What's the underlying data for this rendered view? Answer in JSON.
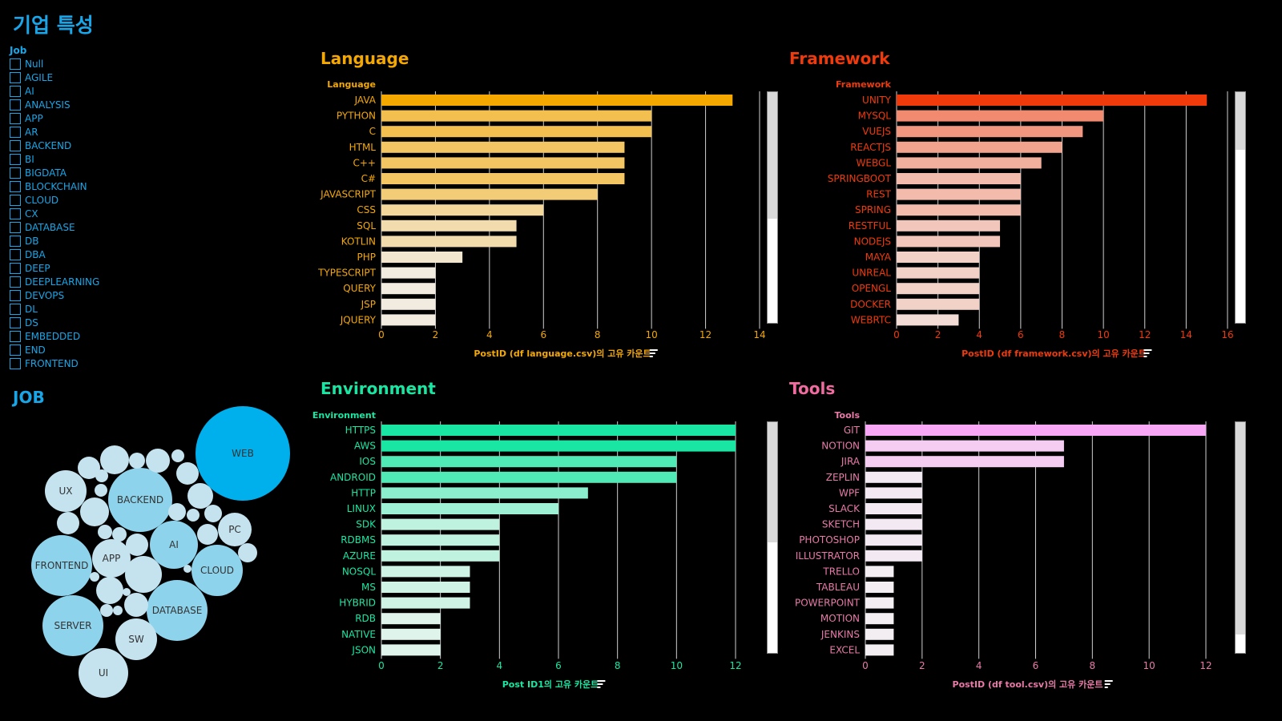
{
  "page_title": "기업 특성",
  "filter": {
    "title": "Job",
    "items": [
      "Null",
      "AGILE",
      "AI",
      "ANALYSIS",
      "APP",
      "AR",
      "BACKEND",
      "BI",
      "BIGDATA",
      "BLOCKCHAIN",
      "CLOUD",
      "CX",
      "DATABASE",
      "DB",
      "DBA",
      "DEEP",
      "DEEPLEARNING",
      "DEVOPS",
      "DL",
      "DS",
      "EMBEDDED",
      "END",
      "FRONTEND"
    ]
  },
  "job": {
    "title": "JOB",
    "labels": [
      "WEB",
      "UX",
      "BACKEND",
      "PC",
      "AI",
      "APP",
      "FRONTEND",
      "CLOUD",
      "DATABASE",
      "SERVER",
      "SW",
      "UI"
    ],
    "colors": {
      "primary": "#00b0ec",
      "mid": "#8ed3ec",
      "light": "#c4e3ef"
    }
  },
  "chart_data": [
    {
      "type": "bar",
      "title": "Language",
      "ylabel": "Language",
      "xlabel": "PostID (df language.csv)의 고유 카운트",
      "categories": [
        "JAVA",
        "PYTHON",
        "C",
        "HTML",
        "C++",
        "C#",
        "JAVASCRIPT",
        "CSS",
        "SQL",
        "KOTLIN",
        "PHP",
        "TYPESCRIPT",
        "QUERY",
        "JSP",
        "JQUERY"
      ],
      "values": [
        13,
        10,
        10,
        9,
        9,
        9,
        8,
        6,
        5,
        5,
        3,
        2,
        2,
        2,
        2
      ],
      "xlim": [
        0,
        14
      ],
      "ticks": [
        0,
        2,
        4,
        6,
        8,
        10,
        12,
        14
      ],
      "color": "#f4a800",
      "color_light": "#f2ebdf",
      "grid": true,
      "scroll_thumb": 0.55
    },
    {
      "type": "bar",
      "title": "Framework",
      "ylabel": "Framework",
      "xlabel": "PostID (df framework.csv)의 고유 카운트",
      "categories": [
        "UNITY",
        "MYSQL",
        "VUEJS",
        "REACTJS",
        "WEBGL",
        "SPRINGBOOT",
        "REST",
        "SPRING",
        "RESTFUL",
        "NODEJS",
        "MAYA",
        "UNREAL",
        "OPENGL",
        "DOCKER",
        "WEBRTC"
      ],
      "values": [
        15,
        10,
        9,
        8,
        7,
        6,
        6,
        6,
        5,
        5,
        4,
        4,
        4,
        4,
        3
      ],
      "xlim": [
        0,
        16
      ],
      "ticks": [
        0,
        2,
        4,
        6,
        8,
        10,
        12,
        14,
        16
      ],
      "color": "#f03a0b",
      "color_light": "#f2dcd5",
      "grid": true,
      "scroll_thumb": 0.25
    },
    {
      "type": "bar",
      "title": "Environment",
      "ylabel": "Environment",
      "xlabel": "Post ID1의 고유 카운트",
      "categories": [
        "HTTPS",
        "AWS",
        "IOS",
        "ANDROID",
        "HTTP",
        "LINUX",
        "SDK",
        "RDBMS",
        "AZURE",
        "NOSQL",
        "MS",
        "HYBRID",
        "RDB",
        "NATIVE",
        "JSON"
      ],
      "values": [
        12,
        12,
        10,
        10,
        7,
        6,
        4,
        4,
        4,
        3,
        3,
        3,
        2,
        2,
        2
      ],
      "xlim": [
        0,
        12
      ],
      "ticks": [
        0,
        2,
        4,
        6,
        8,
        10,
        12
      ],
      "color": "#19e6a3",
      "color_light": "#dff5ec",
      "grid": true,
      "scroll_thumb": 0.52
    },
    {
      "type": "bar",
      "title": "Tools",
      "ylabel": "Tools",
      "xlabel": "PostID (df tool.csv)의 고유 카운트",
      "categories": [
        "GIT",
        "NOTION",
        "JIRA",
        "ZEPLIN",
        "WPF",
        "SLACK",
        "SKETCH",
        "PHOTOSHOP",
        "ILLUSTRATOR",
        "TRELLO",
        "TABLEAU",
        "POWERPOINT",
        "MOTION",
        "JENKINS",
        "EXCEL"
      ],
      "values": [
        12,
        7,
        7,
        2,
        2,
        2,
        2,
        2,
        2,
        1,
        1,
        1,
        1,
        1,
        1
      ],
      "xlim": [
        0,
        12
      ],
      "ticks": [
        0,
        2,
        4,
        6,
        8,
        10,
        12
      ],
      "color": "#f7a7f5",
      "color_light": "#f3eef2",
      "grid": true,
      "scroll_thumb": 0.92
    }
  ]
}
